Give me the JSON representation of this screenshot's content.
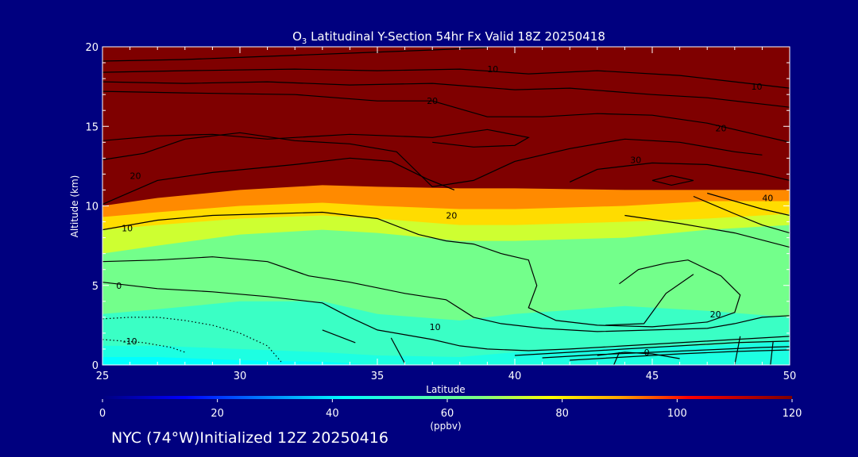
{
  "chart_data": {
    "type": "contour",
    "title_species_main": "O",
    "title_species_sub": "3",
    "title_rest": " Latitudinal Y-Section 54hr  Fx Valid 18Z 20250418",
    "xlabel": "Latitude",
    "ylabel": "Altitude (km)",
    "xlim": [
      25,
      50
    ],
    "ylim": [
      0,
      20
    ],
    "x_ticks": [
      25,
      30,
      35,
      40,
      45,
      50
    ],
    "y_ticks": [
      0,
      5,
      10,
      15,
      20
    ],
    "colorbar": {
      "label": "(ppbv)",
      "range": [
        0,
        120
      ],
      "ticks": [
        0,
        20,
        40,
        60,
        80,
        100,
        120
      ]
    },
    "ozone_field_bands_ppbv": [
      {
        "value": 120,
        "boundary": [
          [
            25,
            10
          ],
          [
            27,
            10.5
          ],
          [
            30,
            11
          ],
          [
            33,
            11.3
          ],
          [
            35,
            11.2
          ],
          [
            38,
            11.1
          ],
          [
            40,
            11.1
          ],
          [
            44,
            11
          ],
          [
            47,
            11
          ],
          [
            50,
            11
          ]
        ]
      },
      {
        "value": 90,
        "boundary": [
          [
            25,
            9.3
          ],
          [
            27,
            9.6
          ],
          [
            30,
            10
          ],
          [
            33,
            10.2
          ],
          [
            35,
            10
          ],
          [
            38,
            9.8
          ],
          [
            40,
            9.8
          ],
          [
            44,
            10
          ],
          [
            47,
            10.3
          ],
          [
            50,
            10.3
          ]
        ]
      },
      {
        "value": 80,
        "boundary": [
          [
            25,
            8.5
          ],
          [
            27,
            8.8
          ],
          [
            30,
            9.2
          ],
          [
            33,
            9.4
          ],
          [
            35,
            9.2
          ],
          [
            38,
            8.8
          ],
          [
            40,
            8.8
          ],
          [
            44,
            9
          ],
          [
            47,
            9.2
          ],
          [
            50,
            9.5
          ]
        ]
      },
      {
        "value": 70,
        "boundary": [
          [
            25,
            7
          ],
          [
            27,
            7.5
          ],
          [
            30,
            8.2
          ],
          [
            33,
            8.5
          ],
          [
            35,
            8.3
          ],
          [
            38,
            7.8
          ],
          [
            40,
            7.8
          ],
          [
            44,
            8
          ],
          [
            47,
            8.5
          ],
          [
            50,
            8.8
          ]
        ]
      },
      {
        "value": 60,
        "boundary": [
          [
            25,
            3.2
          ],
          [
            27,
            3.5
          ],
          [
            30,
            4
          ],
          [
            33,
            4
          ],
          [
            35,
            3.2
          ],
          [
            38,
            2.8
          ],
          [
            40,
            3.2
          ],
          [
            44,
            3.7
          ],
          [
            47,
            3.4
          ],
          [
            50,
            3
          ]
        ]
      },
      {
        "value": 50,
        "boundary": [
          [
            25,
            1.2
          ],
          [
            27,
            1.2
          ],
          [
            30,
            1
          ],
          [
            33,
            0.8
          ],
          [
            35,
            0.6
          ],
          [
            38,
            0.5
          ],
          [
            40,
            0.8
          ],
          [
            44,
            1.1
          ],
          [
            47,
            1.2
          ],
          [
            50,
            1.5
          ]
        ]
      },
      {
        "value": 45,
        "boundary": [
          [
            25,
            0.5
          ],
          [
            27,
            0.5
          ],
          [
            30,
            0.3
          ],
          [
            33,
            0.2
          ],
          [
            35,
            0
          ],
          [
            44,
            0
          ],
          [
            50,
            0
          ]
        ]
      }
    ],
    "contour_labels": [
      {
        "text": "10",
        "x": 39.2,
        "y": 18.6
      },
      {
        "text": "20",
        "x": 37.0,
        "y": 16.6
      },
      {
        "text": "10",
        "x": 48.8,
        "y": 17.5
      },
      {
        "text": "20",
        "x": 47.5,
        "y": 14.9
      },
      {
        "text": "30",
        "x": 44.4,
        "y": 12.9
      },
      {
        "text": "20",
        "x": 26.2,
        "y": 11.9
      },
      {
        "text": "20",
        "x": 37.7,
        "y": 9.4
      },
      {
        "text": "10",
        "x": 25.9,
        "y": 8.6
      },
      {
        "text": "0",
        "x": 25.6,
        "y": 5.0
      },
      {
        "text": "20",
        "x": 47.3,
        "y": 3.2
      },
      {
        "text": "10",
        "x": 37.1,
        "y": 2.4
      },
      {
        "text": "-10",
        "x": 26.0,
        "y": 1.5
      },
      {
        "text": "40",
        "x": 49.2,
        "y": 10.5
      },
      {
        "text": "0",
        "x": 44.8,
        "y": 0.8
      }
    ],
    "contour_lines": [
      {
        "style": "solid",
        "points": [
          [
            25,
            19.1
          ],
          [
            28,
            19.2
          ],
          [
            31,
            19.4
          ],
          [
            34,
            19.6
          ],
          [
            37,
            19.8
          ],
          [
            39,
            19.95
          ]
        ]
      },
      {
        "style": "solid",
        "points": [
          [
            25,
            18.4
          ],
          [
            28,
            18.5
          ],
          [
            32,
            18.6
          ],
          [
            35,
            18.5
          ],
          [
            38,
            18.6
          ],
          [
            40.5,
            18.3
          ],
          [
            43,
            18.5
          ],
          [
            46,
            18.2
          ],
          [
            48,
            17.8
          ],
          [
            50,
            17.4
          ]
        ]
      },
      {
        "style": "solid",
        "points": [
          [
            25,
            17.8
          ],
          [
            28,
            17.7
          ],
          [
            31,
            17.8
          ],
          [
            34,
            17.6
          ],
          [
            37,
            17.7
          ],
          [
            40,
            17.3
          ],
          [
            42,
            17.4
          ],
          [
            45,
            17.0
          ],
          [
            47,
            16.8
          ],
          [
            49,
            16.4
          ],
          [
            50,
            16.2
          ]
        ]
      },
      {
        "style": "solid",
        "points": [
          [
            25,
            17.2
          ],
          [
            28,
            17.1
          ],
          [
            32,
            17.0
          ],
          [
            35,
            16.6
          ],
          [
            37,
            16.6
          ],
          [
            39,
            15.6
          ],
          [
            41,
            15.6
          ],
          [
            43,
            15.8
          ],
          [
            45,
            15.7
          ],
          [
            47,
            15.2
          ],
          [
            49,
            14.4
          ],
          [
            50,
            14.0
          ]
        ]
      },
      {
        "style": "solid",
        "points": [
          [
            25,
            14.1
          ],
          [
            27,
            14.4
          ],
          [
            29,
            14.5
          ],
          [
            31,
            14.2
          ],
          [
            34,
            14.5
          ],
          [
            37,
            14.3
          ],
          [
            39,
            14.8
          ],
          [
            40.5,
            14.3
          ],
          [
            40,
            13.8
          ],
          [
            38.5,
            13.7
          ],
          [
            37,
            14.0
          ]
        ]
      },
      {
        "style": "solid",
        "points": [
          [
            25,
            12.9
          ],
          [
            26.5,
            13.3
          ],
          [
            28,
            14.2
          ],
          [
            30,
            14.6
          ],
          [
            32,
            14.1
          ],
          [
            34,
            13.9
          ],
          [
            35.7,
            13.4
          ],
          [
            37,
            11.2
          ],
          [
            38.5,
            11.6
          ],
          [
            40,
            12.8
          ],
          [
            42,
            13.6
          ],
          [
            44,
            14.2
          ],
          [
            46,
            14.0
          ],
          [
            48,
            13.4
          ],
          [
            49,
            13.2
          ]
        ]
      },
      {
        "style": "solid",
        "points": [
          [
            25,
            10.1
          ],
          [
            27,
            11.6
          ],
          [
            29,
            12.1
          ],
          [
            32,
            12.6
          ],
          [
            34,
            13.0
          ],
          [
            35.5,
            12.8
          ],
          [
            36.8,
            11.7
          ],
          [
            37.8,
            11.0
          ]
        ]
      },
      {
        "style": "solid",
        "points": [
          [
            42,
            11.5
          ],
          [
            43,
            12.3
          ],
          [
            45,
            12.7
          ],
          [
            47,
            12.6
          ],
          [
            49,
            12.0
          ],
          [
            50,
            11.6
          ]
        ]
      },
      {
        "style": "solid",
        "points": [
          [
            45,
            11.6
          ],
          [
            45.7,
            11.9
          ],
          [
            46.5,
            11.6
          ],
          [
            45.7,
            11.3
          ],
          [
            45,
            11.6
          ]
        ]
      },
      {
        "style": "solid",
        "points": [
          [
            25,
            8.5
          ],
          [
            27,
            9.1
          ],
          [
            29,
            9.4
          ],
          [
            31,
            9.5
          ],
          [
            33,
            9.6
          ],
          [
            35,
            9.2
          ],
          [
            36.5,
            8.2
          ],
          [
            37.5,
            7.8
          ],
          [
            38.5,
            7.6
          ],
          [
            39.5,
            7.0
          ],
          [
            40.5,
            6.6
          ],
          [
            40.8,
            5.0
          ],
          [
            40.5,
            3.6
          ],
          [
            41.5,
            2.8
          ],
          [
            43,
            2.5
          ],
          [
            45,
            2.4
          ],
          [
            47,
            2.7
          ],
          [
            48,
            3.3
          ],
          [
            48.2,
            4.4
          ],
          [
            47.5,
            5.6
          ],
          [
            46.3,
            6.6
          ],
          [
            45.5,
            6.4
          ],
          [
            44.5,
            6.0
          ],
          [
            43.8,
            5.1
          ]
        ]
      },
      {
        "style": "solid",
        "points": [
          [
            43.3,
            2.5
          ],
          [
            44.7,
            2.6
          ],
          [
            45.5,
            4.5
          ],
          [
            46.5,
            5.7
          ]
        ]
      },
      {
        "style": "solid",
        "points": [
          [
            25,
            6.5
          ],
          [
            27,
            6.6
          ],
          [
            29,
            6.8
          ],
          [
            31,
            6.5
          ],
          [
            32.5,
            5.6
          ],
          [
            34,
            5.2
          ],
          [
            36,
            4.5
          ],
          [
            37.5,
            4.1
          ],
          [
            38.5,
            3.0
          ],
          [
            39.5,
            2.6
          ],
          [
            41,
            2.3
          ],
          [
            43,
            2.1
          ],
          [
            45,
            2.2
          ],
          [
            47,
            2.3
          ],
          [
            48,
            2.6
          ],
          [
            49,
            3.0
          ],
          [
            50,
            3.1
          ]
        ]
      },
      {
        "style": "solid",
        "points": [
          [
            25,
            5.2
          ],
          [
            27,
            4.8
          ],
          [
            29,
            4.6
          ],
          [
            31,
            4.3
          ],
          [
            33,
            3.9
          ],
          [
            34,
            3.0
          ],
          [
            35,
            2.2
          ],
          [
            36,
            1.9
          ],
          [
            37,
            1.6
          ],
          [
            38,
            1.2
          ],
          [
            39,
            1.0
          ],
          [
            40.5,
            0.9
          ],
          [
            42,
            1.0
          ],
          [
            44,
            1.2
          ],
          [
            46,
            1.4
          ],
          [
            48,
            1.6
          ],
          [
            50,
            1.8
          ]
        ]
      },
      {
        "style": "solid",
        "points": [
          [
            40,
            0.6
          ],
          [
            42,
            0.8
          ],
          [
            44,
            1.0
          ],
          [
            46,
            1.2
          ],
          [
            48,
            1.4
          ],
          [
            50,
            1.5
          ]
        ]
      },
      {
        "style": "solid",
        "points": [
          [
            41,
            0.45
          ],
          [
            43,
            0.65
          ],
          [
            45,
            0.8
          ],
          [
            47,
            0.95
          ],
          [
            49,
            1.1
          ],
          [
            50,
            1.15
          ]
        ]
      },
      {
        "style": "solid",
        "points": [
          [
            42,
            0.3
          ],
          [
            44,
            0.5
          ],
          [
            46,
            0.7
          ],
          [
            48,
            0.85
          ],
          [
            50,
            0.95
          ]
        ]
      },
      {
        "style": "solid",
        "points": [
          [
            43,
            0.6
          ],
          [
            44,
            0.8
          ],
          [
            45,
            0.7
          ],
          [
            46,
            0.4
          ]
        ]
      },
      {
        "style": "solid",
        "points": [
          [
            48,
            0
          ],
          [
            48.2,
            1.8
          ]
        ]
      },
      {
        "style": "solid",
        "points": [
          [
            49.3,
            0
          ],
          [
            49.4,
            1.5
          ]
        ]
      },
      {
        "style": "solid",
        "points": [
          [
            43.6,
            0
          ],
          [
            43.8,
            0.8
          ]
        ]
      },
      {
        "style": "solid",
        "points": [
          [
            47,
            10.8
          ],
          [
            49,
            9.8
          ],
          [
            50,
            9.4
          ]
        ]
      },
      {
        "style": "solid",
        "points": [
          [
            46.5,
            10.6
          ],
          [
            48,
            9.5
          ],
          [
            49,
            8.8
          ],
          [
            50,
            8.3
          ]
        ]
      },
      {
        "style": "solid",
        "points": [
          [
            44,
            9.4
          ],
          [
            46,
            8.9
          ],
          [
            48,
            8.3
          ],
          [
            50,
            7.4
          ]
        ]
      },
      {
        "style": "solid",
        "points": [
          [
            35.5,
            1.7
          ],
          [
            36,
            0.1
          ]
        ]
      },
      {
        "style": "solid",
        "points": [
          [
            33,
            2.2
          ],
          [
            34.2,
            1.4
          ]
        ]
      },
      {
        "style": "dotted",
        "points": [
          [
            25,
            2.9
          ],
          [
            26,
            3.0
          ],
          [
            27,
            3.0
          ],
          [
            28,
            2.8
          ],
          [
            29,
            2.5
          ],
          [
            30,
            2.0
          ],
          [
            31,
            1.2
          ],
          [
            31.5,
            0.2
          ]
        ]
      },
      {
        "style": "dotted",
        "points": [
          [
            25,
            1.6
          ],
          [
            26.5,
            1.4
          ],
          [
            27.5,
            1.1
          ],
          [
            28,
            0.8
          ]
        ]
      }
    ]
  },
  "footer_text": "NYC (74°W)Initialized 12Z 20250416"
}
